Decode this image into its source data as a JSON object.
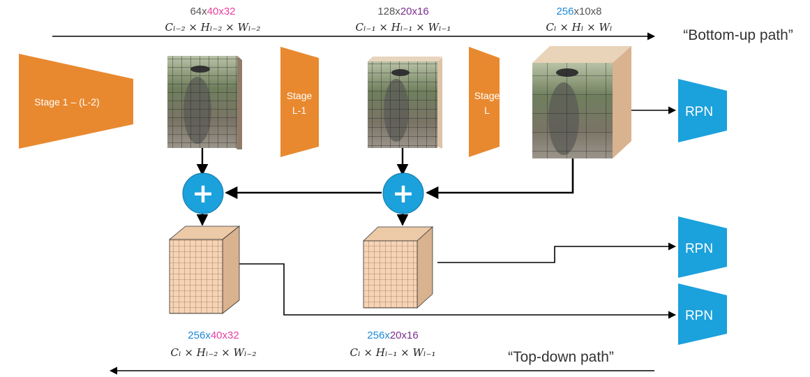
{
  "colors": {
    "stage_orange": "#E8892F",
    "rpn_blue": "#1BA1DC",
    "plus_blue": "#1BA1DC",
    "grid_face": "#F6D3B4",
    "grid_side": "#D9B28F",
    "dim_gray": "#555555",
    "dim_pink": "#E83E9F",
    "dim_purple": "#7B2D8E",
    "dim_blue": "#1A8AD8"
  },
  "bottom_up": {
    "label": "“Bottom-up path”",
    "dims": [
      {
        "parts": [
          {
            "text": "64x",
            "color": "gray"
          },
          {
            "text": "40x32",
            "color": "pink"
          }
        ],
        "formula": "Cₗ₋₂ × Hₗ₋₂ × Wₗ₋₂"
      },
      {
        "parts": [
          {
            "text": "128x",
            "color": "gray"
          },
          {
            "text": "20x16",
            "color": "purple"
          }
        ],
        "formula": "Cₗ₋₁ × Hₗ₋₁ × Wₗ₋₁"
      },
      {
        "parts": [
          {
            "text": "256",
            "color": "blue"
          },
          {
            "text": "x10x8",
            "color": "gray"
          }
        ],
        "formula": "Cₗ × Hₗ × Wₗ"
      }
    ]
  },
  "stages": {
    "stage1": "Stage 1 – (L-2)",
    "stage_l1": [
      "Stage",
      "L-1"
    ],
    "stage_l": [
      "Stage",
      "L"
    ]
  },
  "top_down": {
    "label": "“Top-down path”",
    "dims": [
      {
        "parts": [
          {
            "text": "256x",
            "color": "blue"
          },
          {
            "text": "40x32",
            "color": "pink"
          }
        ],
        "formula": "Cₗ × Hₗ₋₂ × Wₗ₋₂"
      },
      {
        "parts": [
          {
            "text": "256x",
            "color": "blue"
          },
          {
            "text": "20x16",
            "color": "purple"
          }
        ],
        "formula": "Cₗ × Hₗ₋₁ × Wₗ₋₁"
      }
    ]
  },
  "rpn_label": "RPN",
  "plus_symbol": "+"
}
